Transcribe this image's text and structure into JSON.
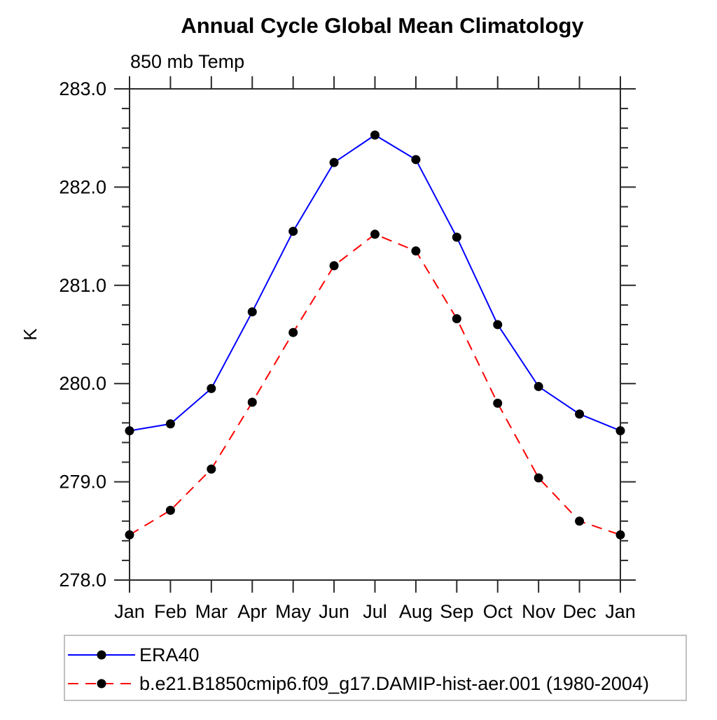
{
  "chart_data": {
    "type": "line",
    "title": "Annual Cycle Global Mean Climatology",
    "subtitle": "850 mb Temp",
    "ylabel": "K",
    "xlabel": "",
    "categories": [
      "Jan",
      "Feb",
      "Mar",
      "Apr",
      "May",
      "Jun",
      "Jul",
      "Aug",
      "Sep",
      "Oct",
      "Nov",
      "Dec",
      "Jan"
    ],
    "ylim": [
      278.0,
      283.0
    ],
    "yticks": [
      278.0,
      279.0,
      280.0,
      281.0,
      282.0,
      283.0
    ],
    "ytick_labels": [
      "278.0",
      "279.0",
      "280.0",
      "281.0",
      "282.0",
      "283.0"
    ],
    "minor_tick_step": 0.2,
    "grid": false,
    "legend_position": "bottom-left",
    "axis_color": "#2a2a2a",
    "marker_color": "#000000",
    "series": [
      {
        "name": "ERA40",
        "color": "#0000ff",
        "line_style": "solid",
        "values": [
          279.52,
          279.59,
          279.95,
          280.73,
          281.55,
          282.25,
          282.53,
          282.28,
          281.49,
          280.6,
          279.97,
          279.69,
          279.52
        ]
      },
      {
        "name": "b.e21.B1850cmip6.f09_g17.DAMIP-hist-aer.001 (1980-2004)",
        "color": "#ff0000",
        "line_style": "dashed",
        "values": [
          278.46,
          278.71,
          279.13,
          279.81,
          280.52,
          281.2,
          281.52,
          281.35,
          280.66,
          279.8,
          279.04,
          278.6,
          278.46
        ]
      }
    ]
  }
}
